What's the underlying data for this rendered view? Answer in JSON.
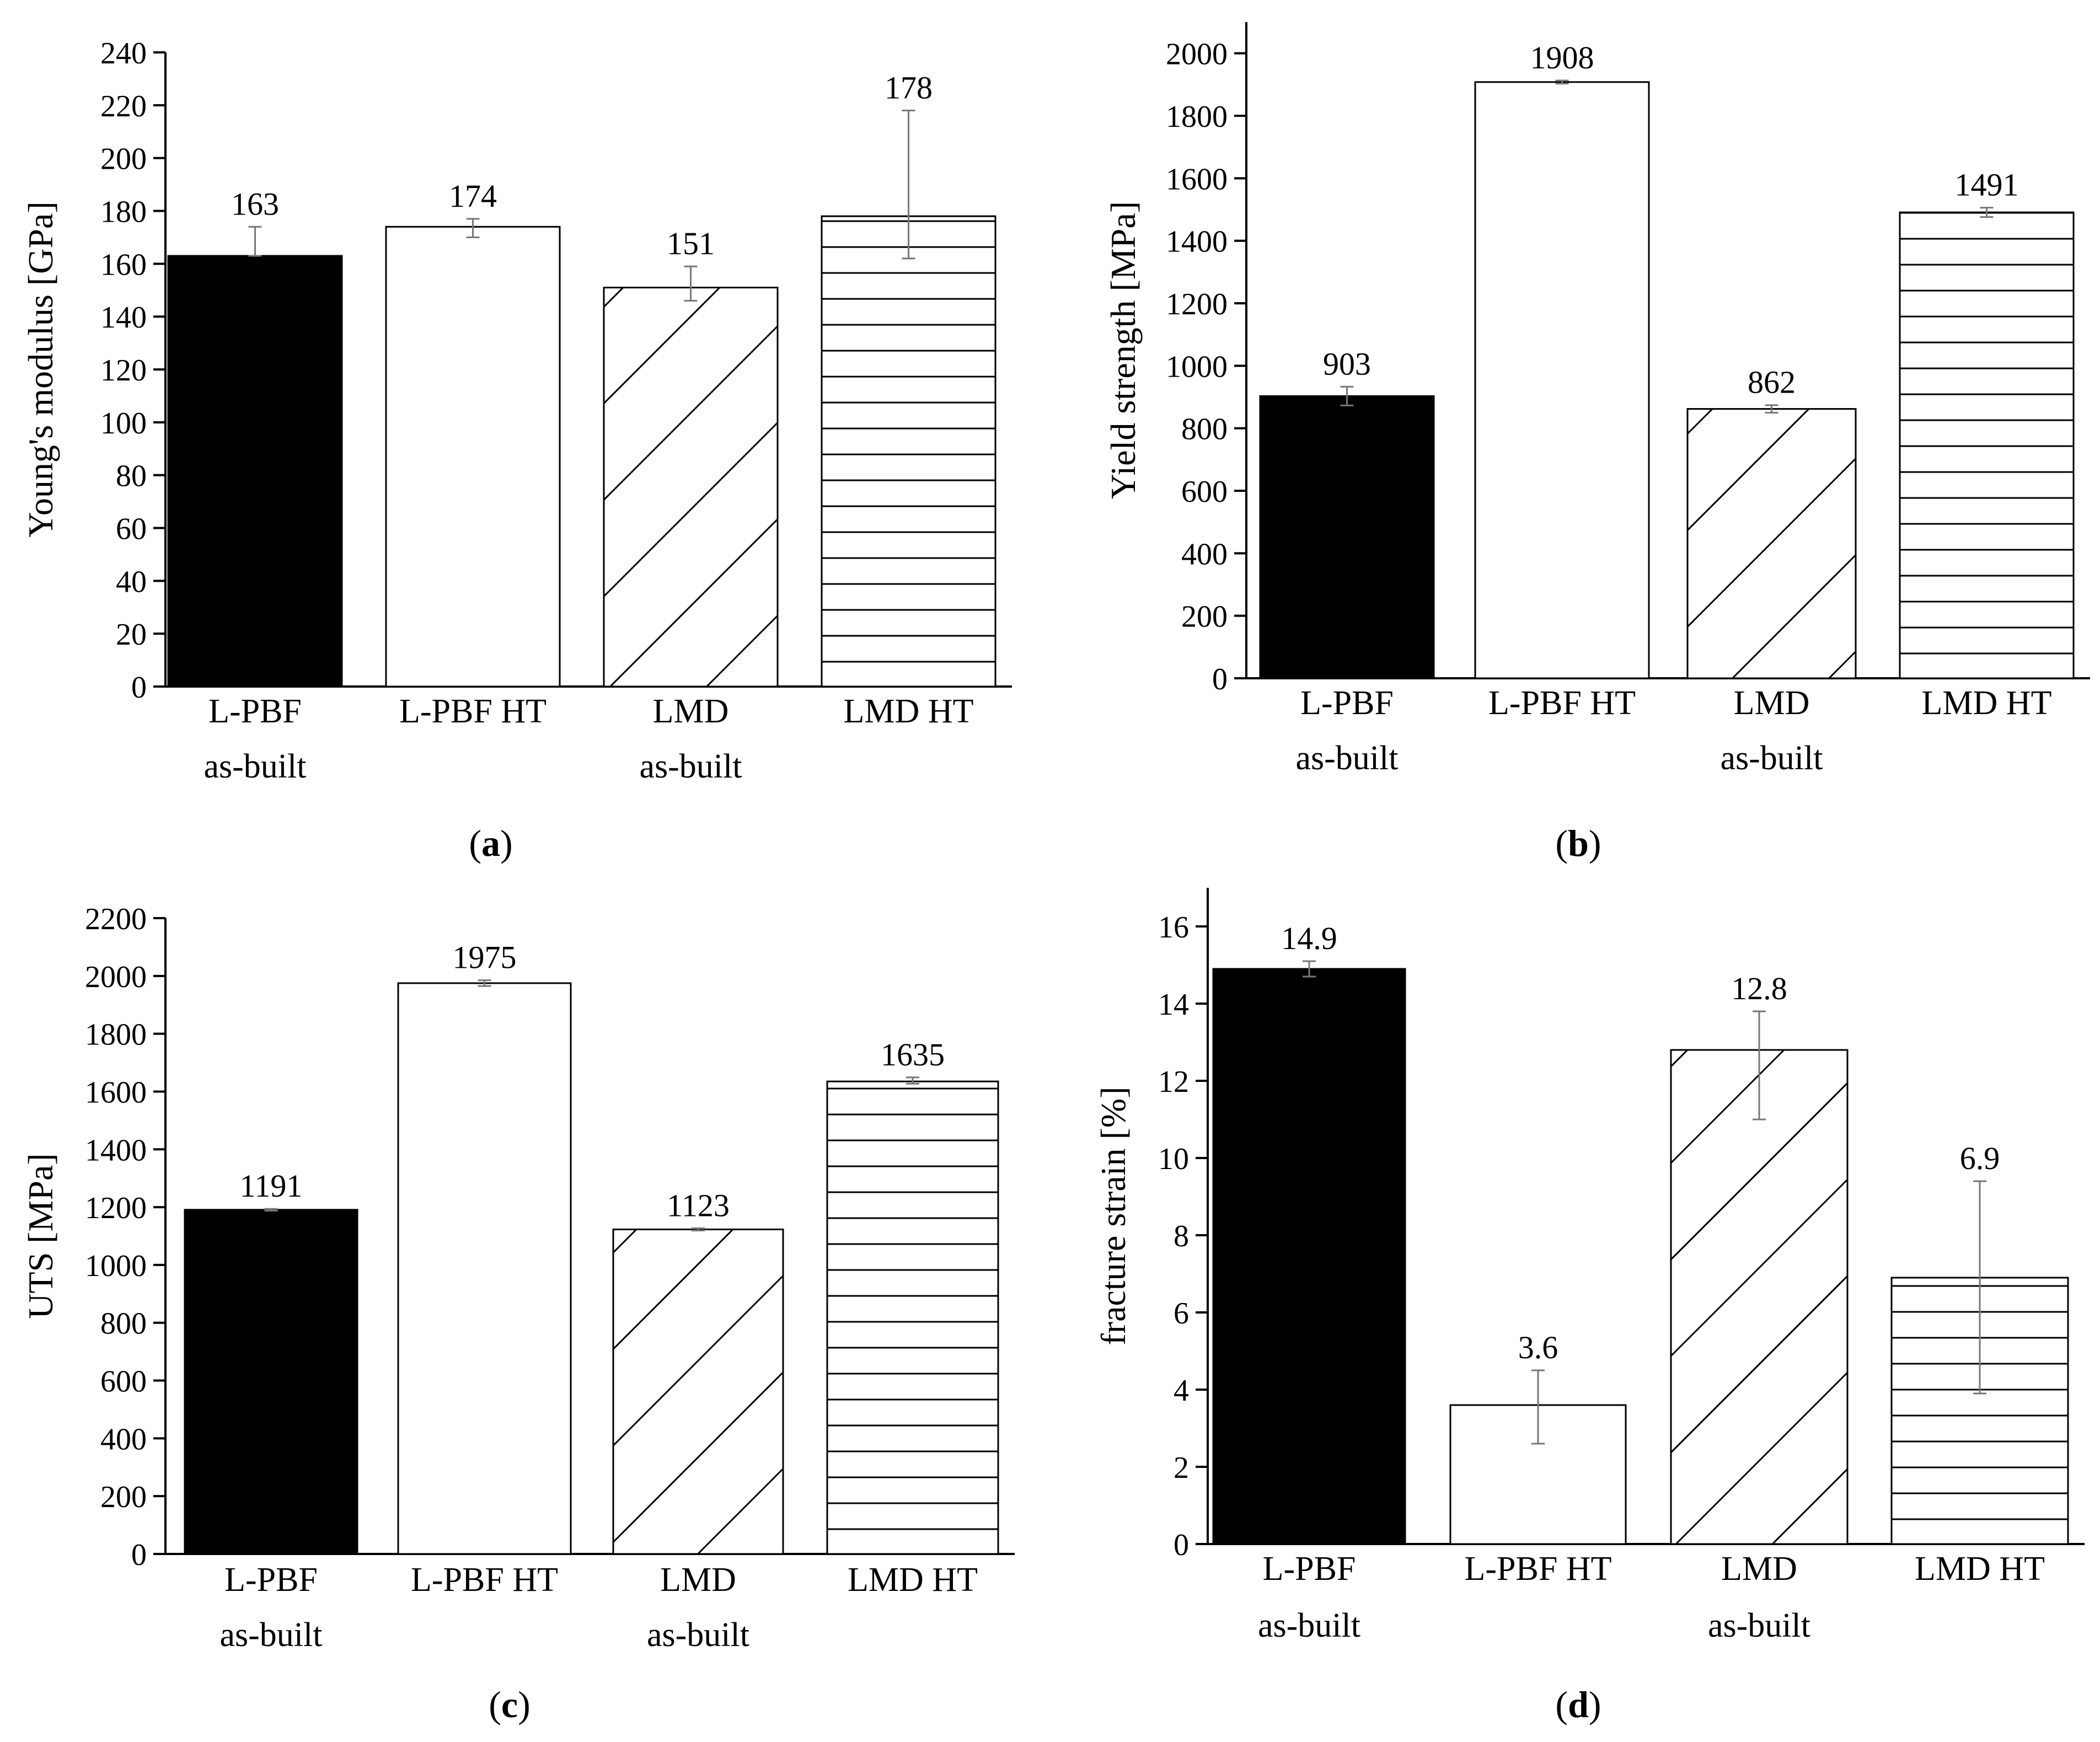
{
  "figure": {
    "panel_labels": [
      "(a)",
      "(b)",
      "(c)",
      "(d)"
    ]
  },
  "chart_data": [
    {
      "id": "a",
      "type": "bar",
      "label": "(a)",
      "ylabel": "Young's modulus [GPa]",
      "ylim": [
        0,
        240
      ],
      "yticks": [
        0,
        20,
        40,
        60,
        80,
        100,
        120,
        140,
        160,
        180,
        200,
        220,
        240
      ],
      "categories": [
        [
          "L-PBF",
          "as-built"
        ],
        [
          "L-PBF HT"
        ],
        [
          "LMD",
          "as-built"
        ],
        [
          "LMD HT"
        ]
      ],
      "values": [
        163,
        174,
        151,
        178
      ],
      "value_labels": [
        "163",
        "174",
        "151",
        "178"
      ],
      "errors": [
        [
          163,
          174
        ],
        [
          170,
          177
        ],
        [
          146,
          159
        ],
        [
          162,
          218
        ]
      ],
      "fills": [
        "solid",
        "empty",
        "diagonal",
        "horizontal"
      ]
    },
    {
      "id": "b",
      "type": "bar",
      "label": "(b)",
      "ylabel": "Yield strength [MPa]",
      "ylim": [
        0,
        2100
      ],
      "yticks": [
        0,
        200,
        400,
        600,
        800,
        1000,
        1200,
        1400,
        1600,
        1800,
        2000
      ],
      "categories": [
        [
          "L-PBF",
          "as-built"
        ],
        [
          "L-PBF HT"
        ],
        [
          "LMD",
          "as-built"
        ],
        [
          "LMD HT"
        ]
      ],
      "values": [
        903,
        1908,
        862,
        1491
      ],
      "value_labels": [
        "903",
        "1908",
        "862",
        "1491"
      ],
      "errors": [
        [
          873,
          933
        ],
        [
          1903,
          1913
        ],
        [
          850,
          874
        ],
        [
          1476,
          1506
        ]
      ],
      "fills": [
        "solid",
        "empty",
        "diagonal",
        "horizontal"
      ]
    },
    {
      "id": "c",
      "type": "bar",
      "label": "(c)",
      "ylabel": "UTS [MPa]",
      "ylim": [
        0,
        2200
      ],
      "yticks": [
        0,
        200,
        400,
        600,
        800,
        1000,
        1200,
        1400,
        1600,
        1800,
        2000,
        2200
      ],
      "categories": [
        [
          "L-PBF",
          "as-built"
        ],
        [
          "L-PBF HT"
        ],
        [
          "LMD",
          "as-built"
        ],
        [
          "LMD HT"
        ]
      ],
      "values": [
        1191,
        1975,
        1123,
        1635
      ],
      "value_labels": [
        "1191",
        "1975",
        "1123",
        "1635"
      ],
      "errors": [
        [
          1188,
          1194
        ],
        [
          1965,
          1985
        ],
        [
          1119,
          1127
        ],
        [
          1627,
          1649
        ]
      ],
      "fills": [
        "solid",
        "empty",
        "diagonal",
        "horizontal"
      ]
    },
    {
      "id": "d",
      "type": "bar",
      "label": "(d)",
      "ylabel": "fracture strain [%]",
      "ylim": [
        0,
        17
      ],
      "yticks": [
        0,
        2,
        4,
        6,
        8,
        10,
        12,
        14,
        16
      ],
      "categories": [
        [
          "L-PBF",
          "as-built"
        ],
        [
          "L-PBF HT"
        ],
        [
          "LMD",
          "as-built"
        ],
        [
          "LMD HT"
        ]
      ],
      "values": [
        14.9,
        3.6,
        12.8,
        6.9
      ],
      "value_labels": [
        "14.9",
        "3.6",
        "12.8",
        "6.9"
      ],
      "errors": [
        [
          14.7,
          15.1
        ],
        [
          2.6,
          4.5
        ],
        [
          11.0,
          13.8
        ],
        [
          3.9,
          9.4
        ]
      ],
      "fills": [
        "solid",
        "empty",
        "diagonal",
        "horizontal"
      ]
    }
  ]
}
